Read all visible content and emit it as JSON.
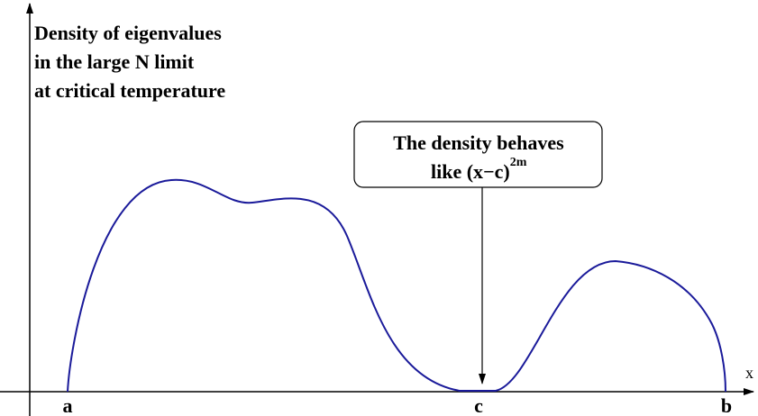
{
  "title_lines": [
    "Density of eigenvalues",
    "in the large N limit",
    "at critical temperature"
  ],
  "annotation": {
    "lines": [
      "The density behaves",
      "like (x−c)"
    ],
    "superscript": "2m"
  },
  "x_axis_label": "x",
  "points": [
    "a",
    "c",
    "b"
  ]
}
